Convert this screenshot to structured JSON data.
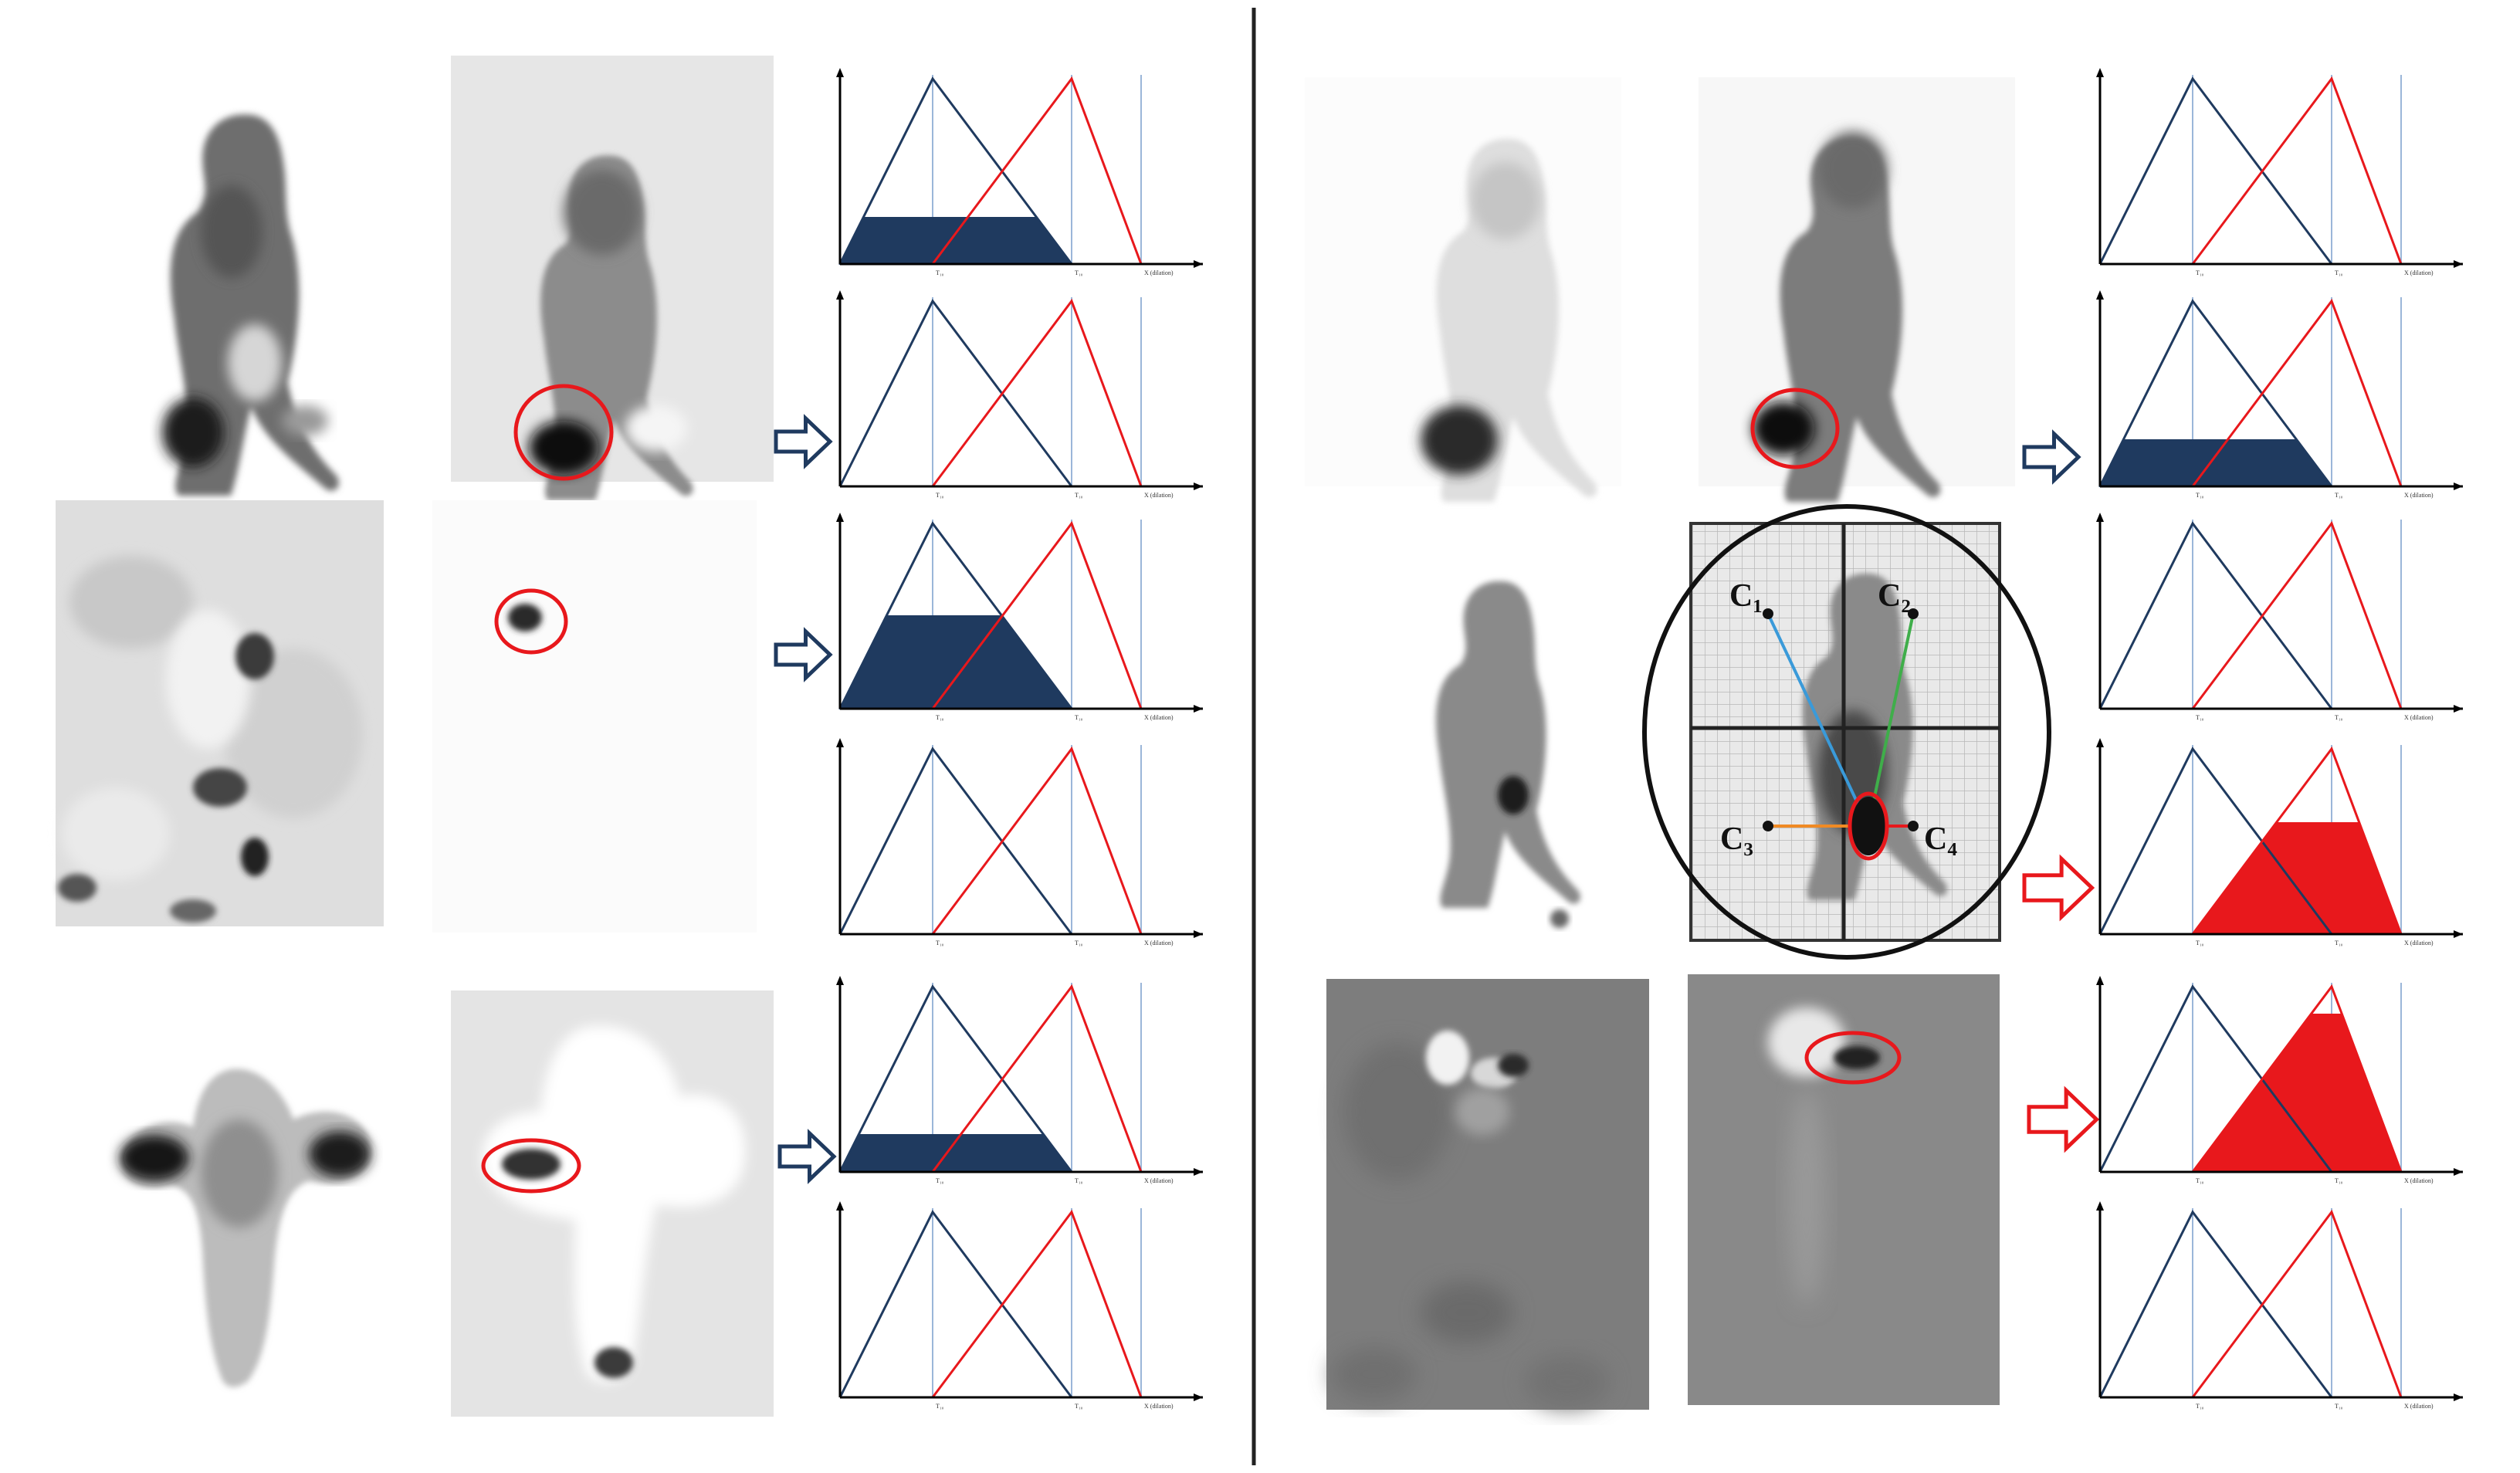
{
  "centroid_labels": [
    "C₁",
    "C₂",
    "C₃",
    "C₄"
  ],
  "membership_plots": {
    "tick_labels": [
      "T₁₀",
      "T₁₀",
      "X (dilation)"
    ],
    "colors": {
      "low": "#1f3a5f",
      "high": "#e8181c",
      "guide": "#9bb6d9",
      "axis": "#000000"
    }
  },
  "panels": [
    {
      "id": "L1",
      "fill": "low",
      "level": 0.25
    },
    {
      "id": "L2",
      "fill": "none",
      "level": 0
    },
    {
      "id": "L3",
      "fill": "low",
      "level": 0.5
    },
    {
      "id": "L4",
      "fill": "none",
      "level": 0
    },
    {
      "id": "L5",
      "fill": "low",
      "level": 0.2
    },
    {
      "id": "L6",
      "fill": "none",
      "level": 0
    },
    {
      "id": "R1",
      "fill": "none",
      "level": 0
    },
    {
      "id": "R2",
      "fill": "low",
      "level": 0.25
    },
    {
      "id": "R3",
      "fill": "none",
      "level": 0
    },
    {
      "id": "R4",
      "fill": "high",
      "level": 0.6
    },
    {
      "id": "R5",
      "fill": "high",
      "level": 0.85
    },
    {
      "id": "R6",
      "fill": "none",
      "level": 0
    }
  ],
  "arrow_colors": {
    "low": "#1f3a5f",
    "high": "#e8181c"
  }
}
